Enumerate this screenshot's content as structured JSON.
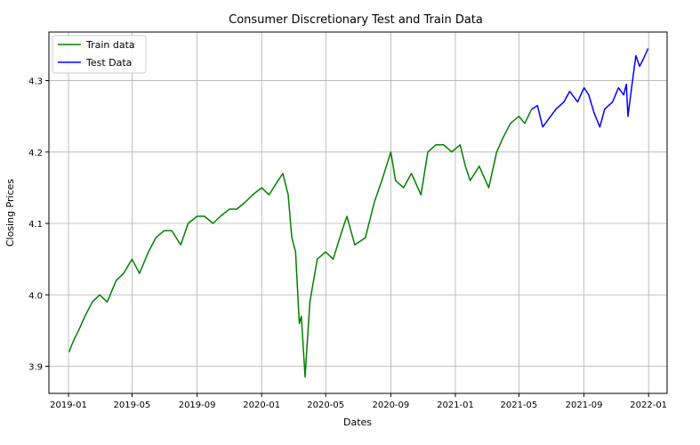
{
  "chart_data": {
    "type": "line",
    "title": "Consumer Discretionary Test and Train Data",
    "xlabel": "Dates",
    "ylabel": "Closing Prices",
    "xlim": [
      "2018-11-25",
      "2022-02-05"
    ],
    "ylim": [
      3.862,
      4.368
    ],
    "x_ticks": [
      "2019-01",
      "2019-05",
      "2019-09",
      "2020-01",
      "2020-05",
      "2020-09",
      "2021-01",
      "2021-05",
      "2021-09",
      "2022-01"
    ],
    "y_ticks": [
      3.9,
      4.0,
      4.1,
      4.2,
      4.3
    ],
    "y_tick_labels": [
      "3.9",
      "4.0",
      "4.1",
      "4.2",
      "4.3"
    ],
    "grid": true,
    "legend_position": "top-left",
    "series": [
      {
        "name": "Train data",
        "color": "#008000",
        "x": [
          "2019-01-02",
          "2019-01-10",
          "2019-01-20",
          "2019-02-01",
          "2019-02-15",
          "2019-03-01",
          "2019-03-15",
          "2019-04-01",
          "2019-04-15",
          "2019-05-01",
          "2019-05-15",
          "2019-06-01",
          "2019-06-15",
          "2019-07-01",
          "2019-07-15",
          "2019-08-01",
          "2019-08-15",
          "2019-09-01",
          "2019-09-15",
          "2019-10-01",
          "2019-10-15",
          "2019-11-01",
          "2019-11-15",
          "2019-12-01",
          "2019-12-15",
          "2020-01-01",
          "2020-01-15",
          "2020-02-01",
          "2020-02-10",
          "2020-02-20",
          "2020-02-27",
          "2020-03-05",
          "2020-03-12",
          "2020-03-16",
          "2020-03-23",
          "2020-04-01",
          "2020-04-15",
          "2020-05-01",
          "2020-05-15",
          "2020-06-01",
          "2020-06-10",
          "2020-06-25",
          "2020-07-15",
          "2020-08-01",
          "2020-08-15",
          "2020-09-01",
          "2020-09-10",
          "2020-09-25",
          "2020-10-10",
          "2020-10-28",
          "2020-11-10",
          "2020-11-25",
          "2020-12-10",
          "2020-12-25",
          "2021-01-10",
          "2021-01-20",
          "2021-01-29",
          "2021-02-15",
          "2021-03-05",
          "2021-03-20",
          "2021-04-01",
          "2021-04-15",
          "2021-05-01",
          "2021-05-12",
          "2021-05-25"
        ],
        "y": [
          3.92,
          3.935,
          3.95,
          3.97,
          3.99,
          4.0,
          3.99,
          4.02,
          4.03,
          4.05,
          4.03,
          4.06,
          4.08,
          4.09,
          4.09,
          4.07,
          4.1,
          4.11,
          4.11,
          4.1,
          4.11,
          4.12,
          4.12,
          4.13,
          4.14,
          4.15,
          4.14,
          4.16,
          4.17,
          4.14,
          4.08,
          4.06,
          3.96,
          3.97,
          3.885,
          3.99,
          4.05,
          4.06,
          4.05,
          4.09,
          4.11,
          4.07,
          4.08,
          4.13,
          4.16,
          4.2,
          4.16,
          4.15,
          4.17,
          4.14,
          4.2,
          4.21,
          4.21,
          4.2,
          4.21,
          4.18,
          4.16,
          4.18,
          4.15,
          4.2,
          4.22,
          4.24,
          4.25,
          4.24,
          4.26
        ]
      },
      {
        "name": "Test Data",
        "color": "#0000ff",
        "x": [
          "2021-05-25",
          "2021-06-05",
          "2021-06-15",
          "2021-06-25",
          "2021-07-10",
          "2021-07-25",
          "2021-08-05",
          "2021-08-20",
          "2021-09-01",
          "2021-09-10",
          "2021-09-20",
          "2021-10-01",
          "2021-10-10",
          "2021-10-25",
          "2021-11-05",
          "2021-11-15",
          "2021-11-20",
          "2021-11-23",
          "2021-11-30",
          "2021-12-08",
          "2021-12-15",
          "2021-12-22",
          "2021-12-31"
        ],
        "y": [
          4.26,
          4.265,
          4.235,
          4.245,
          4.26,
          4.27,
          4.285,
          4.27,
          4.29,
          4.28,
          4.255,
          4.235,
          4.26,
          4.27,
          4.29,
          4.28,
          4.295,
          4.25,
          4.29,
          4.335,
          4.32,
          4.33,
          4.345
        ]
      }
    ]
  }
}
